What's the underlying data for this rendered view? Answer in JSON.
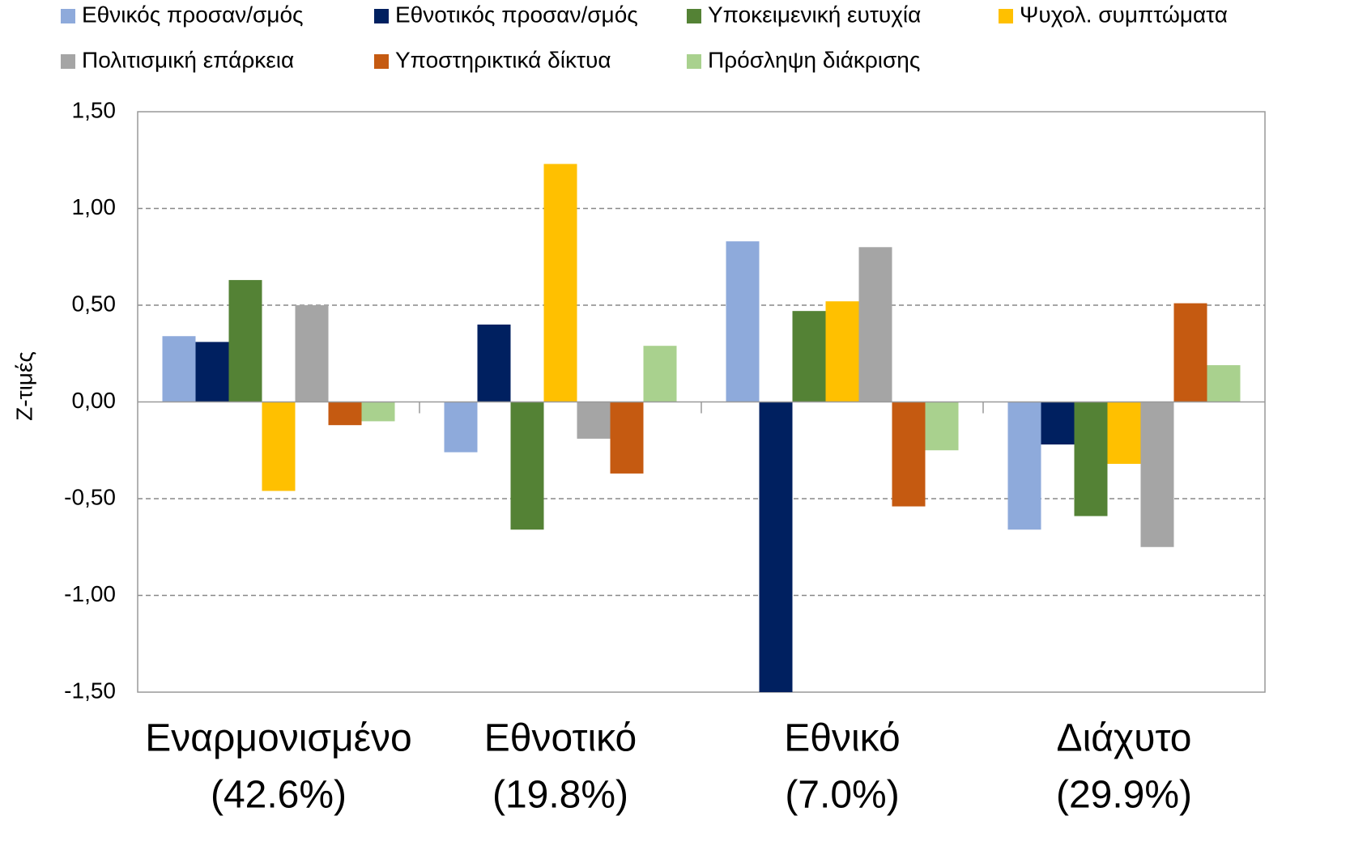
{
  "chart_data": {
    "type": "bar",
    "ylabel": "Z-τιμές",
    "categories": [
      [
        "Εναρμονισμένο",
        "(42.6%)"
      ],
      [
        "Εθνοτικό",
        "(19.8%)"
      ],
      [
        "Εθνικό",
        "(7.0%)"
      ],
      [
        "Διάχυτο",
        "(29.9%)"
      ]
    ],
    "series": [
      {
        "name": "Εθνικός προσαν/σμός",
        "color": "#8eaadb",
        "values": [
          0.34,
          -0.26,
          0.83,
          -0.66
        ]
      },
      {
        "name": "Εθνοτικός προσαν/σμός",
        "color": "#002060",
        "values": [
          0.31,
          0.4,
          -1.5,
          -0.22
        ]
      },
      {
        "name": "Υποκειμενική ευτυχία",
        "color": "#548235",
        "values": [
          0.63,
          -0.66,
          0.47,
          -0.59
        ]
      },
      {
        "name": "Ψυχολ. συμπτώματα",
        "color": "#ffc000",
        "values": [
          -0.46,
          1.23,
          0.52,
          -0.32
        ]
      },
      {
        "name": "Πολιτισμική επάρκεια",
        "color": "#a5a5a5",
        "values": [
          0.5,
          -0.19,
          0.8,
          -0.75
        ]
      },
      {
        "name": "Υποστηρικτικά δίκτυα",
        "color": "#c55a11",
        "values": [
          -0.12,
          -0.37,
          -0.54,
          0.51
        ]
      },
      {
        "name": "Πρόσληψη διάκρισης",
        "color": "#a9d18e",
        "values": [
          -0.1,
          0.29,
          -0.25,
          0.19
        ]
      }
    ],
    "ylim": [
      -1.5,
      1.5
    ],
    "yticks": [
      {
        "value": -1.5,
        "label": "-1,50"
      },
      {
        "value": -1.0,
        "label": "-1,00"
      },
      {
        "value": -0.5,
        "label": "-0,50"
      },
      {
        "value": 0,
        "label": "0,00"
      },
      {
        "value": 0.5,
        "label": "0,50"
      },
      {
        "value": 1.0,
        "label": "1,00"
      },
      {
        "value": 1.5,
        "label": "1,50"
      }
    ],
    "grid": true,
    "legend": "top"
  }
}
